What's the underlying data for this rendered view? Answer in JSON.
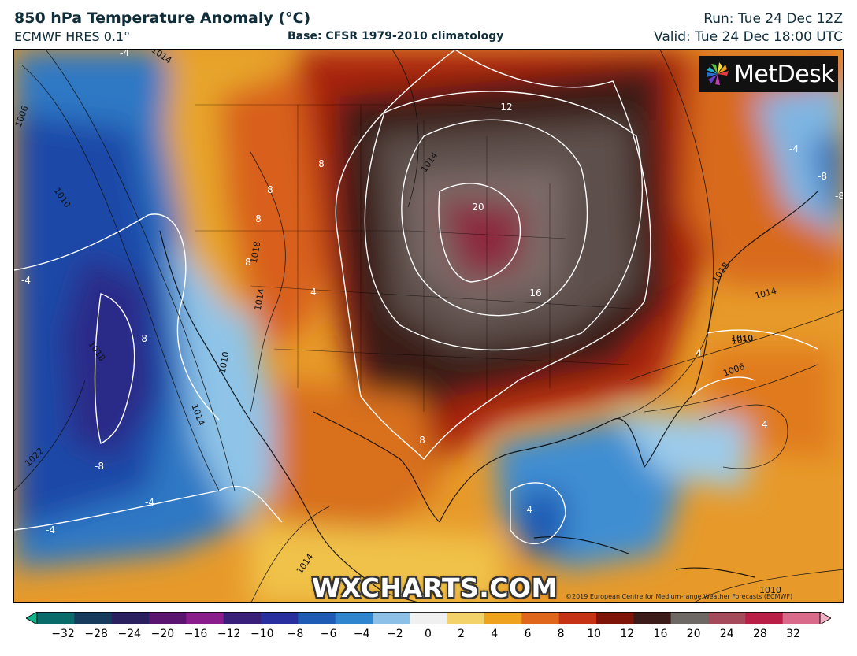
{
  "header": {
    "title": "850 hPa Temperature Anomaly (°C)",
    "model": "ECMWF HRES 0.1°",
    "base": "Base: CFSR 1979-2010 climatology",
    "run": "Run: Tue 24 Dec 12Z",
    "valid": "Valid: Tue 24 Dec 18:00 UTC"
  },
  "branding": {
    "logo_text": "MetDesk",
    "watermark": "WXCHARTS.COM",
    "copyright": "©2019 European Centre for Medium-range Weather Forecasts (ECMWF)"
  },
  "map": {
    "anomaly_labels": [
      "12",
      "20",
      "16",
      "8",
      "8",
      "8",
      "8",
      "8",
      "4",
      "4",
      "4",
      "-4",
      "-4",
      "-4",
      "-4",
      "-8",
      "-8",
      "-8",
      "-4",
      "-4",
      "-8"
    ],
    "isobar_labels": [
      "1014",
      "1006",
      "1010",
      "1018",
      "1014",
      "1010",
      "1010",
      "1014",
      "1022",
      "1014",
      "1018",
      "1014",
      "1010",
      "1006",
      "1014",
      "1010",
      "1018"
    ]
  },
  "colorbar": {
    "ticks": [
      "−32",
      "−28",
      "−24",
      "−20",
      "−16",
      "−12",
      "−10",
      "−8",
      "−6",
      "−4",
      "−2",
      "0",
      "2",
      "4",
      "6",
      "8",
      "10",
      "12",
      "16",
      "20",
      "24",
      "28",
      "32"
    ],
    "colors": [
      "#11b38a",
      "#0a6b6b",
      "#173b5c",
      "#2a2060",
      "#5b1470",
      "#8a1c8c",
      "#3a1f7a",
      "#2a2fa0",
      "#1e5bb5",
      "#2f86cf",
      "#8cc0e6",
      "#f0f0f0",
      "#f4d26a",
      "#eea21e",
      "#e0661c",
      "#c53214",
      "#7e1408",
      "#3b1c18",
      "#6e6864",
      "#a44a5a",
      "#b81e46",
      "#d96a8a",
      "#f0b0c4"
    ]
  }
}
